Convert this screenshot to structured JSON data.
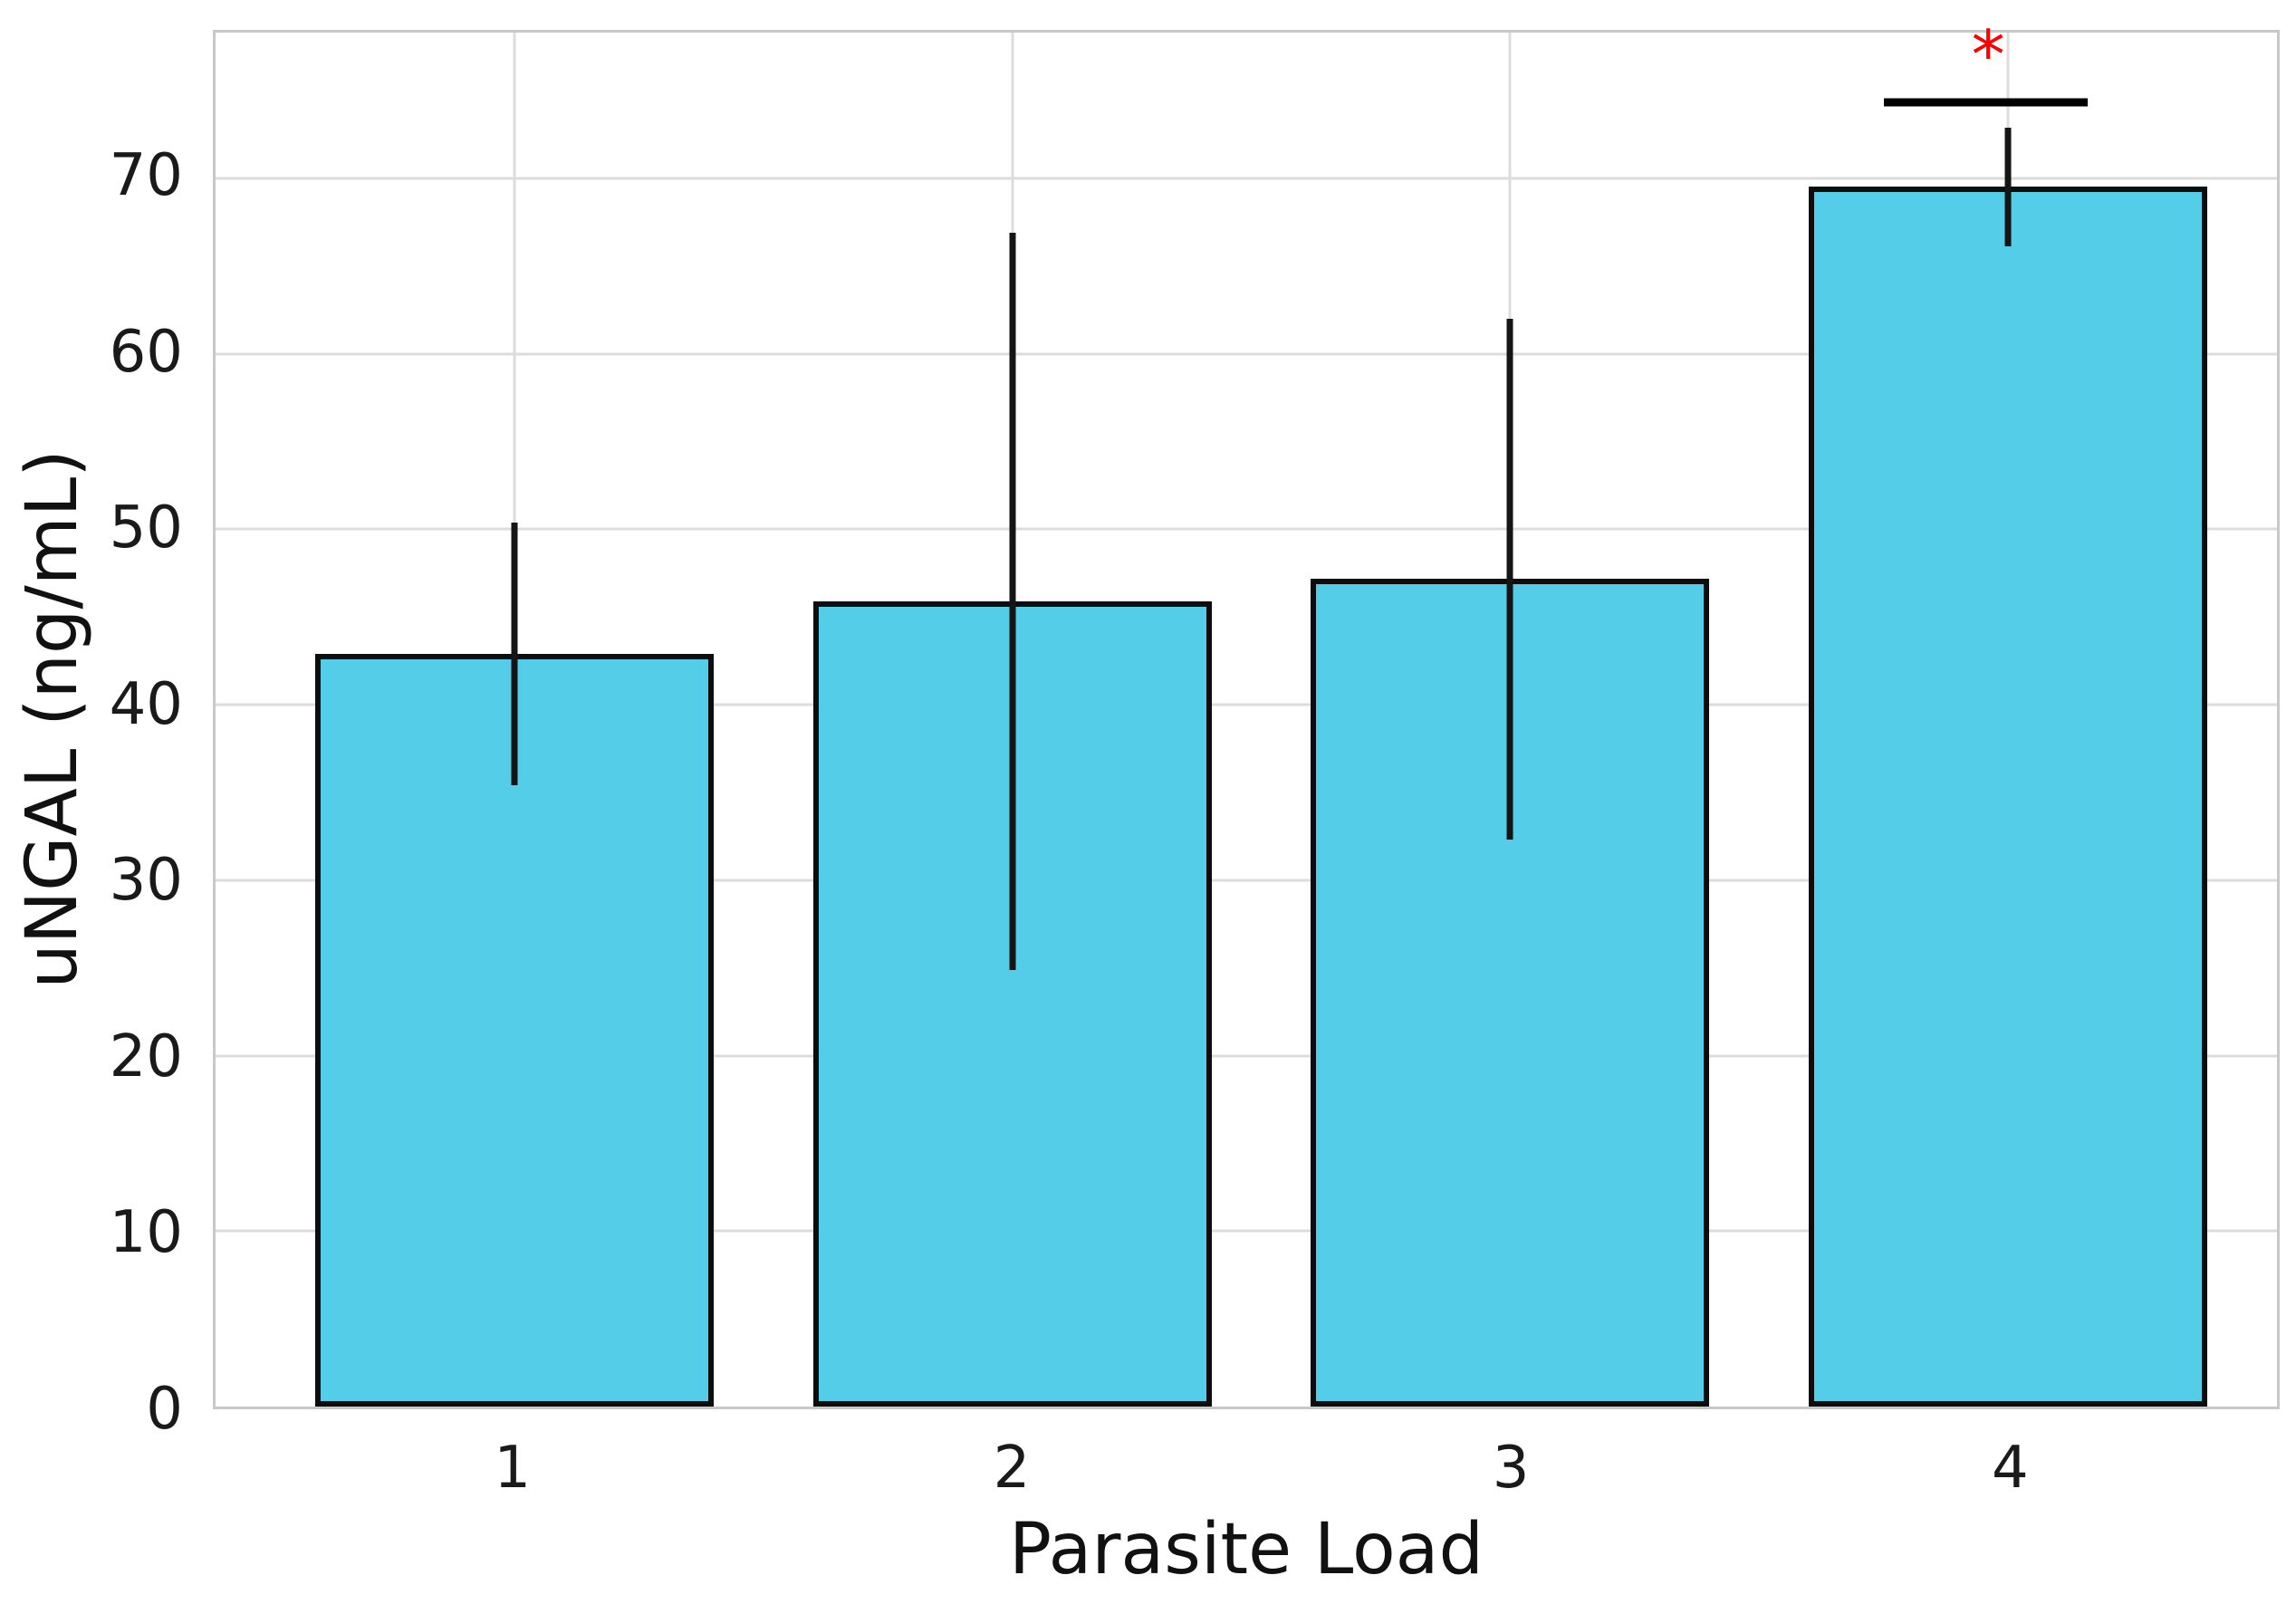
{
  "chart_data": {
    "type": "bar",
    "title": "",
    "xlabel": "Parasite Load",
    "ylabel": "uNGAL (ng/mL)",
    "categories": [
      "1",
      "2",
      "3",
      "4"
    ],
    "values": [
      42.9,
      45.9,
      47.2,
      69.5
    ],
    "error_low": [
      35.4,
      24.9,
      32.3,
      66.1
    ],
    "error_high": [
      50.4,
      66.9,
      62.0,
      72.9
    ],
    "yticks": [
      0,
      10,
      20,
      30,
      40,
      50,
      60,
      70
    ],
    "ylim": [
      0,
      78.3
    ],
    "xlim": [
      -0.6,
      3.54
    ],
    "bar_width": 0.8,
    "grid": "both",
    "legend": "none",
    "colors": {
      "bar_fill": "#54cde8",
      "bar_edge": "#0d0d0d",
      "error_bar": "#151515",
      "grid_line": "#dcdcdc",
      "spine": "#c8c8c8",
      "tick_text": "#1a1a1a",
      "significance_star": "#ff0000",
      "significance_line": "#000000"
    },
    "significance": {
      "star_label": "*",
      "star_x": 2.96,
      "star_y": 77.0,
      "line_y": 74.3,
      "line_x_start": 2.75,
      "line_x_end": 3.16
    }
  }
}
